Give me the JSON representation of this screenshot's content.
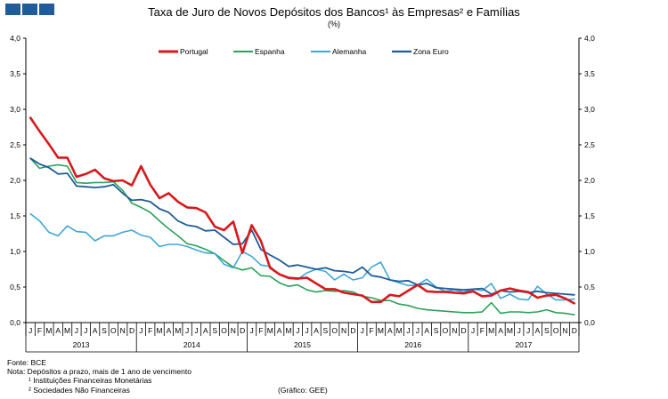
{
  "header": {
    "title": "Taxa de Juro de Novos Depósitos dos Bancos¹ às Empresas² e Famílias",
    "subtitle": "(%)"
  },
  "footer": {
    "source": "Fonte: BCE",
    "note": "Nota: Depósitos a prazo, mais de 1 ano de vencimento",
    "footnote1": "¹ Instituições Financeiras Monetárias",
    "footnote2": "² Sociedades Não Financeiras",
    "credit": "(Gráfico: GEE)"
  },
  "chart_data": {
    "type": "line",
    "title": "Taxa de Juro de Novos Depósitos dos Bancos¹ às Empresas² e Famílias",
    "subtitle": "(%)",
    "ylim": [
      0,
      4
    ],
    "yticks": [
      "0,0",
      "0,5",
      "1,0",
      "1,5",
      "2,0",
      "2,5",
      "3,0",
      "3,5",
      "4,0"
    ],
    "ytick_values": [
      0,
      0.5,
      1,
      1.5,
      2,
      2.5,
      3,
      3.5,
      4
    ],
    "secondary_axis": true,
    "grid": false,
    "legend_position": "top",
    "month_labels": [
      "J",
      "F",
      "M",
      "A",
      "M",
      "J",
      "J",
      "A",
      "S",
      "O",
      "N",
      "D"
    ],
    "years": [
      "2013",
      "2014",
      "2015",
      "2016",
      "2017"
    ],
    "series": [
      {
        "name": "Portugal",
        "color": "#d7191c",
        "width": 2.6,
        "values": [
          2.88,
          2.69,
          2.51,
          2.32,
          2.32,
          2.05,
          2.09,
          2.15,
          2.03,
          1.99,
          2.0,
          1.93,
          2.2,
          1.94,
          1.75,
          1.82,
          1.7,
          1.62,
          1.61,
          1.55,
          1.35,
          1.3,
          1.42,
          0.98,
          1.37,
          1.15,
          0.77,
          0.68,
          0.63,
          0.62,
          0.63,
          0.55,
          0.47,
          0.47,
          0.42,
          0.4,
          0.38,
          0.29,
          0.29,
          0.39,
          0.37,
          0.45,
          0.53,
          0.44,
          0.43,
          0.43,
          0.42,
          0.41,
          0.44,
          0.37,
          0.38,
          0.45,
          0.48,
          0.45,
          0.43,
          0.35,
          0.38,
          0.39,
          0.34,
          0.27
        ]
      },
      {
        "name": "Espanha",
        "color": "#2ca05a",
        "width": 1.6,
        "values": [
          2.31,
          2.17,
          2.2,
          2.22,
          2.2,
          1.97,
          1.96,
          1.97,
          1.97,
          1.98,
          1.86,
          1.68,
          1.62,
          1.55,
          1.43,
          1.32,
          1.22,
          1.11,
          1.08,
          1.03,
          0.97,
          0.87,
          0.78,
          0.74,
          0.77,
          0.66,
          0.65,
          0.56,
          0.51,
          0.53,
          0.46,
          0.43,
          0.45,
          0.44,
          0.45,
          0.43,
          0.37,
          0.35,
          0.31,
          0.31,
          0.26,
          0.24,
          0.2,
          0.18,
          0.17,
          0.16,
          0.15,
          0.14,
          0.14,
          0.15,
          0.28,
          0.13,
          0.15,
          0.15,
          0.14,
          0.15,
          0.18,
          0.14,
          0.13,
          0.11
        ]
      },
      {
        "name": "Alemanha",
        "color": "#3fa6d8",
        "width": 1.6,
        "values": [
          1.53,
          1.43,
          1.27,
          1.22,
          1.36,
          1.28,
          1.27,
          1.15,
          1.22,
          1.22,
          1.27,
          1.3,
          1.23,
          1.2,
          1.07,
          1.1,
          1.1,
          1.07,
          1.02,
          0.98,
          0.97,
          0.82,
          0.77,
          1.0,
          0.93,
          0.81,
          0.79,
          0.68,
          0.62,
          0.61,
          0.7,
          0.75,
          0.72,
          0.6,
          0.68,
          0.6,
          0.63,
          0.78,
          0.85,
          0.6,
          0.56,
          0.52,
          0.53,
          0.61,
          0.5,
          0.44,
          0.46,
          0.43,
          0.47,
          0.45,
          0.55,
          0.34,
          0.4,
          0.33,
          0.32,
          0.51,
          0.4,
          0.32,
          0.32,
          0.33
        ]
      },
      {
        "name": "Zona Euro",
        "color": "#1f5c99",
        "width": 1.8,
        "values": [
          2.31,
          2.23,
          2.18,
          2.09,
          2.1,
          1.92,
          1.91,
          1.9,
          1.91,
          1.94,
          1.82,
          1.72,
          1.73,
          1.7,
          1.6,
          1.55,
          1.43,
          1.37,
          1.35,
          1.29,
          1.3,
          1.2,
          1.1,
          1.11,
          1.3,
          1.03,
          0.95,
          0.88,
          0.79,
          0.81,
          0.78,
          0.75,
          0.77,
          0.73,
          0.72,
          0.7,
          0.78,
          0.66,
          0.64,
          0.6,
          0.58,
          0.59,
          0.53,
          0.55,
          0.49,
          0.48,
          0.47,
          0.46,
          0.47,
          0.48,
          0.4,
          0.45,
          0.43,
          0.44,
          0.42,
          0.44,
          0.42,
          0.41,
          0.4,
          0.39
        ]
      }
    ]
  }
}
